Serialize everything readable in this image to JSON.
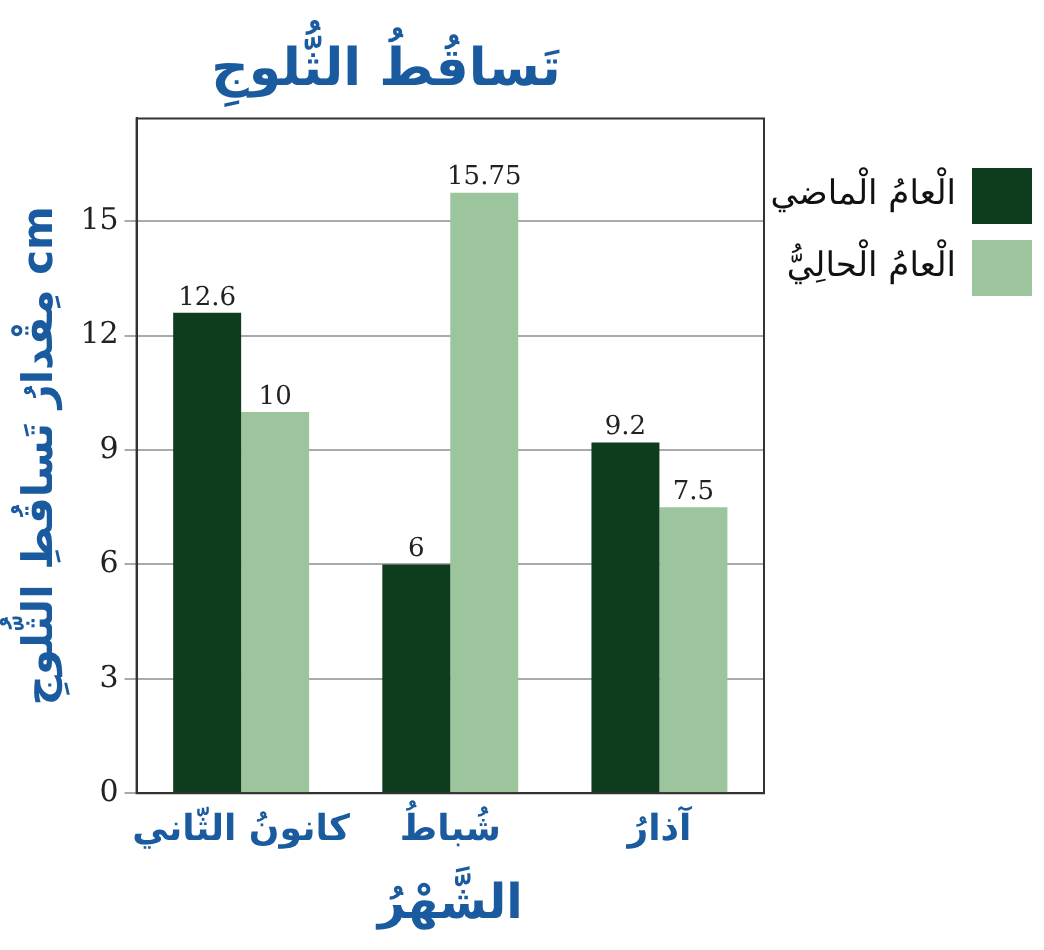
{
  "chart_data": {
    "type": "bar",
    "title": "تَساقُطُ الثُّلوجِ",
    "xlabel": "الشَّهْرُ",
    "ylabel": "مِقْدارُ تَساقُطِ الثُّلوجِ cm",
    "categories": [
      "كانونُ الثّاني",
      "شُباطُ",
      "آذارُ"
    ],
    "series": [
      {
        "name": "الْعامُ الْماضي",
        "color": "#0e3d1e",
        "values": [
          12.6,
          6,
          9.2
        ]
      },
      {
        "name": "الْعامُ الْحالِيُّ",
        "color": "#9cc49d",
        "values": [
          10,
          15.75,
          7.5
        ]
      }
    ],
    "ylim": [
      0,
      17.7
    ],
    "yticks": [
      0,
      3,
      6,
      9,
      12,
      15
    ],
    "grid": "y",
    "legend": "top right",
    "data_labels": true
  }
}
